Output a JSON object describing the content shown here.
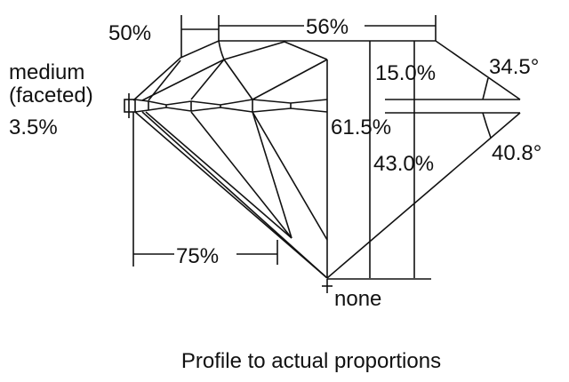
{
  "labels": {
    "table_start": "50%",
    "table": "56%",
    "girdle_line1": "medium",
    "girdle_line2": "(faceted)",
    "girdle_thickness": "3.5%",
    "crown_height": "15.0%",
    "crown_angle": "34.5°",
    "total_depth": "61.5%",
    "pavilion_depth": "43.0%",
    "pavilion_angle": "40.8°",
    "lower_half": "75%",
    "culet": "none"
  },
  "caption": "Profile to actual proportions",
  "colors": {
    "line": "#111111",
    "background": "#ffffff"
  }
}
